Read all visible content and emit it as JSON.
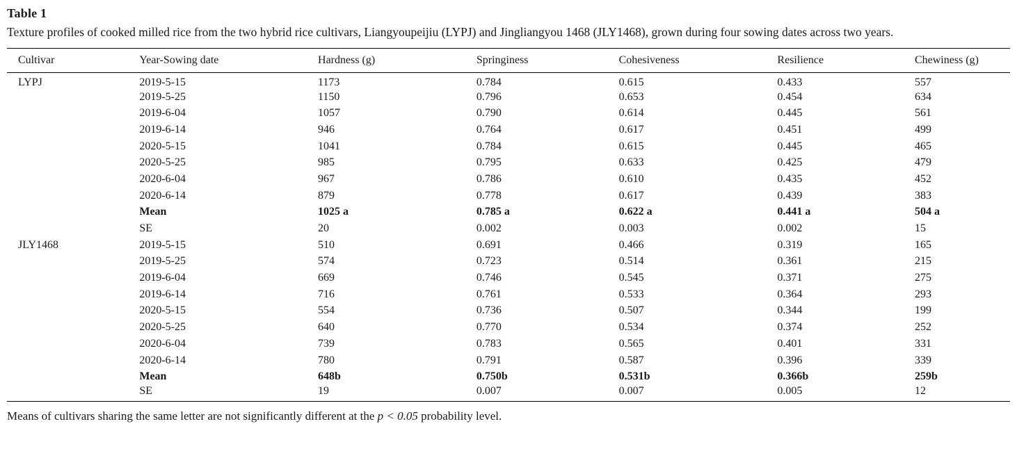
{
  "table": {
    "label": "Table 1",
    "caption": "Texture profiles of cooked milled rice from the two hybrid rice cultivars, Liangyoupeijiu (LYPJ) and Jingliangyou 1468 (JLY1468), grown during four sowing dates across two years.",
    "columns": [
      "Cultivar",
      "Year-Sowing date",
      "Hardness (g)",
      "Springiness",
      "Cohesiveness",
      "Resilience",
      "Chewiness (g)"
    ],
    "rows": [
      {
        "bold": false,
        "cells": [
          "LYPJ",
          "2019-5-15",
          "1173",
          "0.784",
          "0.615",
          "0.433",
          "557"
        ]
      },
      {
        "bold": false,
        "cells": [
          "",
          "2019-5-25",
          "1150",
          "0.796",
          "0.653",
          "0.454",
          "634"
        ]
      },
      {
        "bold": false,
        "cells": [
          "",
          "2019-6-04",
          "1057",
          "0.790",
          "0.614",
          "0.445",
          "561"
        ]
      },
      {
        "bold": false,
        "cells": [
          "",
          "2019-6-14",
          "946",
          "0.764",
          "0.617",
          "0.451",
          "499"
        ]
      },
      {
        "bold": false,
        "cells": [
          "",
          "2020-5-15",
          "1041",
          "0.784",
          "0.615",
          "0.445",
          "465"
        ]
      },
      {
        "bold": false,
        "cells": [
          "",
          "2020-5-25",
          "985",
          "0.795",
          "0.633",
          "0.425",
          "479"
        ]
      },
      {
        "bold": false,
        "cells": [
          "",
          "2020-6-04",
          "967",
          "0.786",
          "0.610",
          "0.435",
          "452"
        ]
      },
      {
        "bold": false,
        "cells": [
          "",
          "2020-6-14",
          "879",
          "0.778",
          "0.617",
          "0.439",
          "383"
        ]
      },
      {
        "bold": true,
        "cells": [
          "",
          "Mean",
          "1025 a",
          "0.785 a",
          "0.622 a",
          "0.441 a",
          "504 a"
        ]
      },
      {
        "bold": false,
        "cells": [
          "",
          "SE",
          "20",
          "0.002",
          "0.003",
          "0.002",
          "15"
        ]
      },
      {
        "bold": false,
        "cells": [
          "JLY1468",
          "2019-5-15",
          "510",
          "0.691",
          "0.466",
          "0.319",
          "165"
        ]
      },
      {
        "bold": false,
        "cells": [
          "",
          "2019-5-25",
          "574",
          "0.723",
          "0.514",
          "0.361",
          "215"
        ]
      },
      {
        "bold": false,
        "cells": [
          "",
          "2019-6-04",
          "669",
          "0.746",
          "0.545",
          "0.371",
          "275"
        ]
      },
      {
        "bold": false,
        "cells": [
          "",
          "2019-6-14",
          "716",
          "0.761",
          "0.533",
          "0.364",
          "293"
        ]
      },
      {
        "bold": false,
        "cells": [
          "",
          "2020-5-15",
          "554",
          "0.736",
          "0.507",
          "0.344",
          "199"
        ]
      },
      {
        "bold": false,
        "cells": [
          "",
          "2020-5-25",
          "640",
          "0.770",
          "0.534",
          "0.374",
          "252"
        ]
      },
      {
        "bold": false,
        "cells": [
          "",
          "2020-6-04",
          "739",
          "0.783",
          "0.565",
          "0.401",
          "331"
        ]
      },
      {
        "bold": false,
        "cells": [
          "",
          "2020-6-14",
          "780",
          "0.791",
          "0.587",
          "0.396",
          "339"
        ]
      },
      {
        "bold": true,
        "cells": [
          "",
          "Mean",
          "648b",
          "0.750b",
          "0.531b",
          "0.366b",
          "259b"
        ]
      },
      {
        "bold": false,
        "cells": [
          "",
          "SE",
          "19",
          "0.007",
          "0.007",
          "0.005",
          "12"
        ]
      }
    ]
  },
  "footnote": {
    "prefix": "Means of cultivars sharing the same letter are not significantly different at the ",
    "italic": "p < 0.05",
    "suffix": " probability level."
  },
  "colors": {
    "text": "#1a1a1a",
    "rule": "#000000",
    "background": "#ffffff"
  }
}
